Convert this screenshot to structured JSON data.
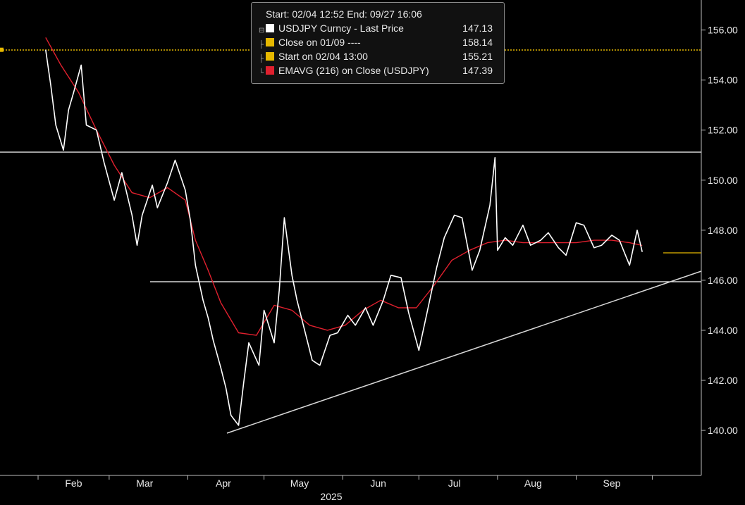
{
  "legend": {
    "header": "Start: 02/04 12:52 End: 09/27 16:06",
    "items": [
      {
        "label": "USDJPY Curncy - Last Price",
        "value": "147.13",
        "color": "#ffffff"
      },
      {
        "label": "Close on 01/09 ----",
        "value": "158.14",
        "color": "#e6b800"
      },
      {
        "label": "Start on 02/04 13:00",
        "value": "155.21",
        "color": "#e6b800"
      },
      {
        "label": "EMAVG (216) on Close (USDJPY)",
        "value": "147.39",
        "color": "#e0202e"
      }
    ]
  },
  "chart_data": {
    "type": "line",
    "x_tick_labels": [
      "Feb",
      "Mar",
      "Apr",
      "May",
      "Jun",
      "Jul",
      "Aug",
      "Sep"
    ],
    "x_year_label": "2025",
    "y_tick_labels": [
      "156.00",
      "154.00",
      "152.00",
      "150.00",
      "148.00",
      "146.00",
      "144.00",
      "142.00",
      "140.00"
    ],
    "ylim": [
      138.2,
      157.2
    ],
    "y_axis_position": "right",
    "grid": false,
    "legend_position": "top-center",
    "series": [
      {
        "name": "USDJPY Curncy - Last Price",
        "color": "#ffffff",
        "x": [
          "2025-02-04",
          "2025-02-06",
          "2025-02-08",
          "2025-02-11",
          "2025-02-13",
          "2025-02-15",
          "2025-02-18",
          "2025-02-20",
          "2025-02-24",
          "2025-02-27",
          "2025-03-03",
          "2025-03-06",
          "2025-03-10",
          "2025-03-12",
          "2025-03-14",
          "2025-03-18",
          "2025-03-20",
          "2025-03-24",
          "2025-03-27",
          "2025-03-31",
          "2025-04-02",
          "2025-04-04",
          "2025-04-07",
          "2025-04-09",
          "2025-04-11",
          "2025-04-14",
          "2025-04-16",
          "2025-04-18",
          "2025-04-21",
          "2025-04-23",
          "2025-04-25",
          "2025-04-29",
          "2025-05-01",
          "2025-05-05",
          "2025-05-07",
          "2025-05-09",
          "2025-05-12",
          "2025-05-14",
          "2025-05-16",
          "2025-05-20",
          "2025-05-23",
          "2025-05-27",
          "2025-05-30",
          "2025-06-03",
          "2025-06-06",
          "2025-06-10",
          "2025-06-13",
          "2025-06-17",
          "2025-06-20",
          "2025-06-24",
          "2025-06-27",
          "2025-07-01",
          "2025-07-04",
          "2025-07-08",
          "2025-07-11",
          "2025-07-15",
          "2025-07-18",
          "2025-07-22",
          "2025-07-25",
          "2025-07-29",
          "2025-07-31",
          "2025-08-01",
          "2025-08-04",
          "2025-08-07",
          "2025-08-11",
          "2025-08-14",
          "2025-08-18",
          "2025-08-21",
          "2025-08-25",
          "2025-08-28",
          "2025-09-01",
          "2025-09-04",
          "2025-09-08",
          "2025-09-11",
          "2025-09-15",
          "2025-09-18",
          "2025-09-22",
          "2025-09-25",
          "2025-09-27"
        ],
        "values": [
          155.21,
          153.8,
          152.2,
          151.2,
          152.8,
          153.5,
          154.6,
          152.2,
          152.0,
          150.7,
          149.2,
          150.3,
          148.6,
          147.4,
          148.6,
          149.8,
          148.9,
          149.9,
          150.8,
          149.6,
          148.4,
          146.6,
          145.2,
          144.5,
          143.6,
          142.5,
          141.7,
          140.6,
          140.2,
          141.9,
          143.5,
          142.6,
          144.8,
          143.5,
          145.6,
          148.5,
          146.2,
          145.2,
          144.4,
          142.8,
          142.6,
          143.8,
          143.9,
          144.6,
          144.2,
          144.9,
          144.2,
          145.2,
          146.2,
          146.1,
          144.7,
          143.2,
          144.6,
          146.5,
          147.7,
          148.6,
          148.5,
          146.4,
          147.2,
          149.0,
          150.9,
          147.2,
          147.7,
          147.4,
          148.2,
          147.4,
          147.6,
          147.9,
          147.3,
          147.0,
          148.3,
          148.2,
          147.3,
          147.4,
          147.8,
          147.6,
          146.6,
          148.0,
          147.13
        ]
      },
      {
        "name": "EMAVG (216) on Close (USDJPY)",
        "color": "#e0202e",
        "x": [
          "2025-02-04",
          "2025-02-10",
          "2025-02-17",
          "2025-02-24",
          "2025-03-03",
          "2025-03-10",
          "2025-03-17",
          "2025-03-24",
          "2025-03-31",
          "2025-04-04",
          "2025-04-09",
          "2025-04-14",
          "2025-04-21",
          "2025-04-28",
          "2025-05-05",
          "2025-05-12",
          "2025-05-19",
          "2025-05-26",
          "2025-06-02",
          "2025-06-09",
          "2025-06-16",
          "2025-06-23",
          "2025-06-30",
          "2025-07-07",
          "2025-07-14",
          "2025-07-21",
          "2025-07-28",
          "2025-08-04",
          "2025-08-11",
          "2025-08-18",
          "2025-08-25",
          "2025-09-01",
          "2025-09-08",
          "2025-09-15",
          "2025-09-22",
          "2025-09-27"
        ],
        "values": [
          155.7,
          154.6,
          153.5,
          152.0,
          150.6,
          149.5,
          149.3,
          149.7,
          149.2,
          147.6,
          146.4,
          145.1,
          143.9,
          143.8,
          145.0,
          144.8,
          144.2,
          144.0,
          144.2,
          144.8,
          145.2,
          144.9,
          144.9,
          145.8,
          146.8,
          147.2,
          147.5,
          147.6,
          147.5,
          147.5,
          147.5,
          147.5,
          147.6,
          147.6,
          147.5,
          147.39
        ]
      }
    ]
  }
}
